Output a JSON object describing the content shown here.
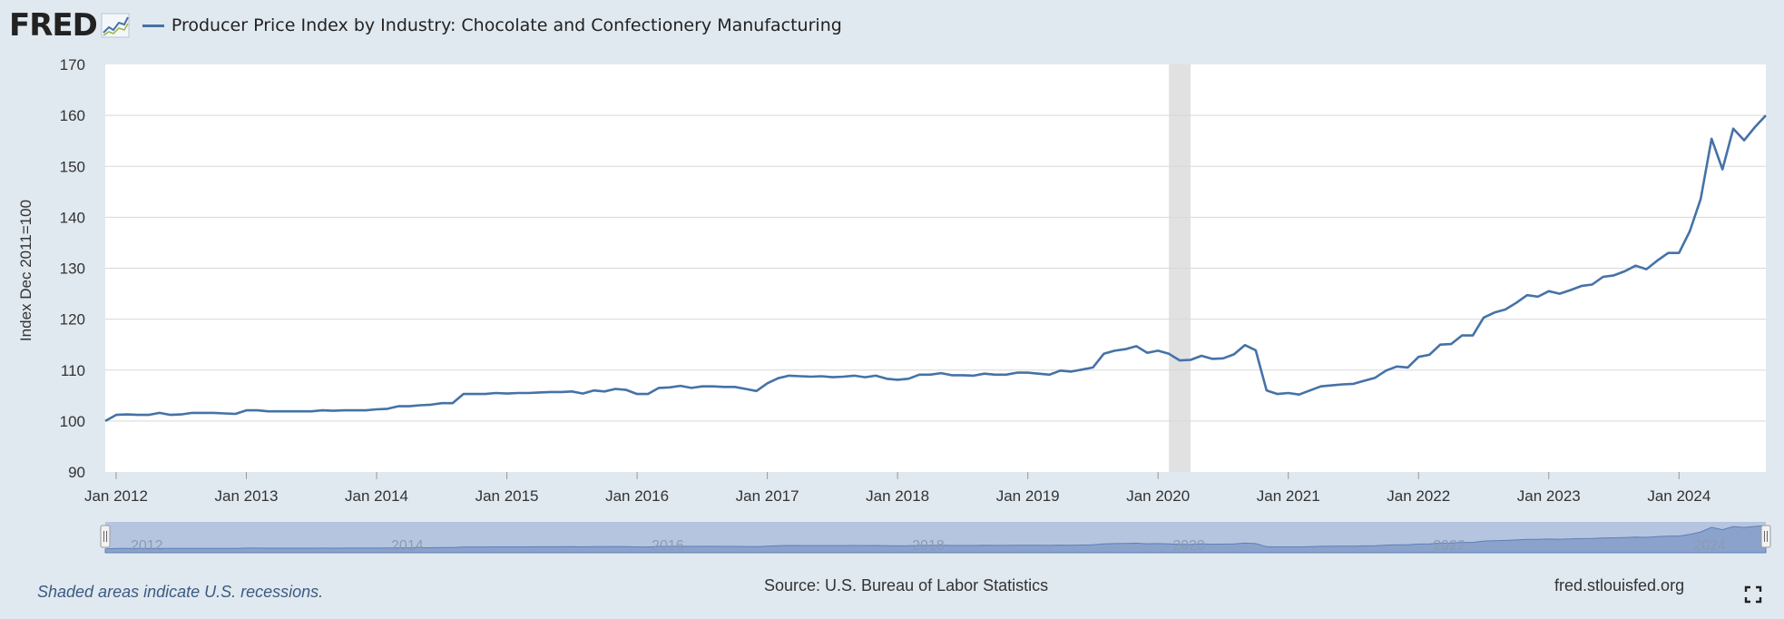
{
  "header": {
    "logo_text": "FRED",
    "series_title": "Producer Price Index by Industry: Chocolate and Confectionery Manufacturing"
  },
  "footer": {
    "recession_note": "Shaded areas indicate U.S. recessions.",
    "source": "Source: U.S. Bureau of Labor Statistics",
    "site": "fred.stlouisfed.org"
  },
  "colors": {
    "line": "#4572a7",
    "background": "#e1e9f0",
    "plot_background": "#ffffff",
    "recession": "#e1e1e1",
    "navigator_fill": "#8ba3cc"
  },
  "chart_data": {
    "type": "line",
    "title": "Producer Price Index by Industry: Chocolate and Confectionery Manufacturing",
    "ylabel": "Index Dec 2011=100",
    "ylim": [
      90,
      170
    ],
    "yticks": [
      90,
      100,
      110,
      120,
      130,
      140,
      150,
      160,
      170
    ],
    "xlim": [
      "2011-12",
      "2024-09"
    ],
    "xticks": [
      "Jan 2012",
      "Jan 2013",
      "Jan 2014",
      "Jan 2015",
      "Jan 2016",
      "Jan 2017",
      "Jan 2018",
      "Jan 2019",
      "Jan 2020",
      "Jan 2021",
      "Jan 2022",
      "Jan 2023",
      "Jan 2024"
    ],
    "navigator_labels": [
      "2012",
      "2014",
      "2016",
      "2018",
      "2020",
      "2022",
      "2024"
    ],
    "recessions": [
      {
        "start": "2020-02",
        "end": "2020-04"
      }
    ],
    "grid": true,
    "series": [
      {
        "name": "Producer Price Index by Industry: Chocolate and Confectionery Manufacturing",
        "start": "2011-12",
        "frequency": "monthly",
        "values": [
          100.0,
          101.2,
          101.3,
          101.2,
          101.2,
          101.6,
          101.2,
          101.3,
          101.6,
          101.6,
          101.6,
          101.5,
          101.4,
          102.1,
          102.1,
          101.9,
          101.9,
          101.9,
          101.9,
          101.9,
          102.1,
          102.0,
          102.1,
          102.1,
          102.1,
          102.3,
          102.4,
          102.9,
          102.9,
          103.1,
          103.2,
          103.5,
          103.5,
          105.3,
          105.3,
          105.3,
          105.5,
          105.4,
          105.5,
          105.5,
          105.6,
          105.7,
          105.7,
          105.8,
          105.4,
          106.0,
          105.8,
          106.3,
          106.1,
          105.3,
          105.3,
          106.5,
          106.6,
          106.9,
          106.5,
          106.8,
          106.8,
          106.7,
          106.7,
          106.3,
          105.9,
          107.4,
          108.4,
          108.9,
          108.8,
          108.7,
          108.8,
          108.6,
          108.7,
          108.9,
          108.6,
          108.9,
          108.3,
          108.1,
          108.3,
          109.1,
          109.1,
          109.4,
          109.0,
          109.0,
          108.9,
          109.3,
          109.1,
          109.1,
          109.5,
          109.5,
          109.3,
          109.1,
          109.9,
          109.7,
          110.1,
          110.5,
          113.2,
          113.8,
          114.1,
          114.7,
          113.4,
          113.8,
          113.2,
          111.9,
          112.0,
          112.8,
          112.2,
          112.3,
          113.1,
          114.9,
          113.9,
          106.0,
          105.3,
          105.5,
          105.2,
          106.0,
          106.8,
          107.0,
          107.2,
          107.3,
          107.9,
          108.5,
          109.9,
          110.7,
          110.5,
          112.6,
          113.0,
          115.0,
          115.1,
          116.8,
          116.8,
          120.3,
          121.3,
          121.9,
          123.2,
          124.7,
          124.4,
          125.5,
          125.0,
          125.7,
          126.5,
          126.8,
          128.3,
          128.6,
          129.4,
          130.5,
          129.8,
          131.5,
          133.0,
          133.0,
          137.3,
          143.6,
          155.4,
          149.4,
          157.4,
          155.1,
          157.7,
          160.0
        ]
      }
    ]
  }
}
